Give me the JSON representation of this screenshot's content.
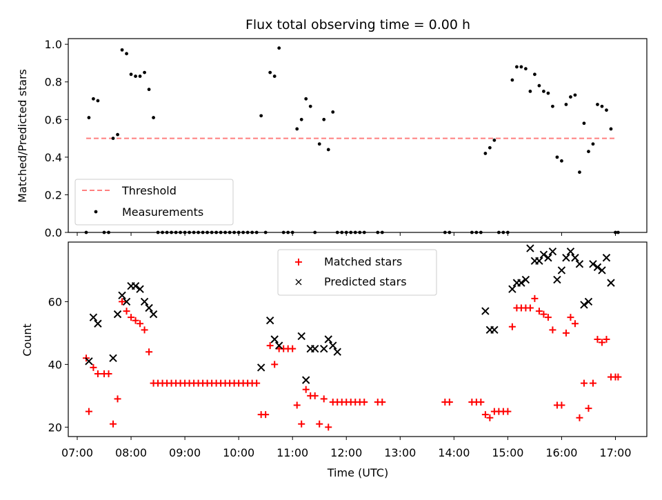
{
  "title": "Flux total observing time = 0.00 h",
  "colors": {
    "threshold": "#ff7f7f",
    "measurement": "#000000",
    "matched": "#ff0000",
    "predicted": "#000000"
  },
  "chart_data": [
    {
      "type": "scatter",
      "ylabel": "Matched/Predicted stars",
      "ylim": [
        0,
        1.03
      ],
      "yticks": [
        "0.0",
        "0.2",
        "0.4",
        "0.6",
        "0.8",
        "1.0"
      ],
      "ytick_values": [
        0,
        0.2,
        0.4,
        0.6,
        0.8,
        1.0
      ],
      "legend": {
        "position": "lower-left",
        "entries": [
          "Threshold",
          "Measurements"
        ]
      },
      "threshold": {
        "name": "Threshold",
        "value": 0.5,
        "x_range": [
          "07:10",
          "17:00"
        ]
      },
      "series": [
        {
          "name": "Measurements",
          "points": [
            [
              "07:10",
              0
            ],
            [
              "07:13",
              0.61
            ],
            [
              "07:18",
              0.71
            ],
            [
              "07:23",
              0.7
            ],
            [
              "07:30",
              0
            ],
            [
              "07:35",
              0
            ],
            [
              "07:40",
              0.5
            ],
            [
              "07:45",
              0.52
            ],
            [
              "07:50",
              0.97
            ],
            [
              "07:55",
              0.95
            ],
            [
              "08:00",
              0.84
            ],
            [
              "08:05",
              0.83
            ],
            [
              "08:10",
              0.83
            ],
            [
              "08:15",
              0.85
            ],
            [
              "08:20",
              0.76
            ],
            [
              "08:25",
              0.61
            ],
            [
              "08:30",
              0
            ],
            [
              "08:35",
              0
            ],
            [
              "08:40",
              0
            ],
            [
              "08:45",
              0
            ],
            [
              "08:50",
              0
            ],
            [
              "08:55",
              0
            ],
            [
              "09:00",
              0
            ],
            [
              "09:05",
              0
            ],
            [
              "09:10",
              0
            ],
            [
              "09:15",
              0
            ],
            [
              "09:20",
              0
            ],
            [
              "09:25",
              0
            ],
            [
              "09:30",
              0
            ],
            [
              "09:35",
              0
            ],
            [
              "09:40",
              0
            ],
            [
              "09:45",
              0
            ],
            [
              "09:50",
              0
            ],
            [
              "09:55",
              0
            ],
            [
              "10:00",
              0
            ],
            [
              "10:05",
              0
            ],
            [
              "10:10",
              0
            ],
            [
              "10:15",
              0
            ],
            [
              "10:20",
              0
            ],
            [
              "10:25",
              0.62
            ],
            [
              "10:30",
              0
            ],
            [
              "10:35",
              0.85
            ],
            [
              "10:40",
              0.83
            ],
            [
              "10:45",
              0.98
            ],
            [
              "10:50",
              0
            ],
            [
              "10:55",
              0
            ],
            [
              "11:00",
              0
            ],
            [
              "11:05",
              0.55
            ],
            [
              "11:10",
              0.6
            ],
            [
              "11:15",
              0.71
            ],
            [
              "11:20",
              0.67
            ],
            [
              "11:25",
              0
            ],
            [
              "11:30",
              0.47
            ],
            [
              "11:35",
              0.6
            ],
            [
              "11:40",
              0.44
            ],
            [
              "11:45",
              0.64
            ],
            [
              "11:50",
              0
            ],
            [
              "11:55",
              0
            ],
            [
              "12:00",
              0
            ],
            [
              "12:05",
              0
            ],
            [
              "12:10",
              0
            ],
            [
              "12:15",
              0
            ],
            [
              "12:20",
              0
            ],
            [
              "12:35",
              0
            ],
            [
              "12:40",
              0
            ],
            [
              "13:50",
              0
            ],
            [
              "13:55",
              0
            ],
            [
              "14:20",
              0
            ],
            [
              "14:25",
              0
            ],
            [
              "14:30",
              0
            ],
            [
              "14:35",
              0.42
            ],
            [
              "14:40",
              0.45
            ],
            [
              "14:45",
              0.49
            ],
            [
              "14:50",
              0
            ],
            [
              "14:55",
              0
            ],
            [
              "15:00",
              0
            ],
            [
              "15:05",
              0.81
            ],
            [
              "15:10",
              0.88
            ],
            [
              "15:15",
              0.88
            ],
            [
              "15:20",
              0.87
            ],
            [
              "15:25",
              0.75
            ],
            [
              "15:30",
              0.84
            ],
            [
              "15:35",
              0.78
            ],
            [
              "15:40",
              0.75
            ],
            [
              "15:45",
              0.74
            ],
            [
              "15:50",
              0.67
            ],
            [
              "15:55",
              0.4
            ],
            [
              "16:00",
              0.38
            ],
            [
              "16:05",
              0.68
            ],
            [
              "16:10",
              0.72
            ],
            [
              "16:15",
              0.73
            ],
            [
              "16:20",
              0.32
            ],
            [
              "16:25",
              0.58
            ],
            [
              "16:30",
              0.43
            ],
            [
              "16:35",
              0.47
            ],
            [
              "16:40",
              0.68
            ],
            [
              "16:45",
              0.67
            ],
            [
              "16:50",
              0.65
            ],
            [
              "16:55",
              0.55
            ],
            [
              "17:00",
              0
            ],
            [
              "17:03",
              0
            ]
          ]
        }
      ]
    },
    {
      "type": "scatter",
      "xlabel": "Time (UTC)",
      "ylabel": "Count",
      "ylim": [
        17,
        79
      ],
      "yticks": [
        "20",
        "40",
        "60"
      ],
      "ytick_values": [
        20,
        40,
        60
      ],
      "xlim": [
        "06:50",
        "17:35"
      ],
      "xticks": [
        "07:00",
        "08:00",
        "09:00",
        "10:00",
        "11:00",
        "12:00",
        "13:00",
        "14:00",
        "15:00",
        "16:00",
        "17:00"
      ],
      "legend": {
        "position": "top-center",
        "entries": [
          "Matched stars",
          "Predicted stars"
        ]
      },
      "series": [
        {
          "name": "Matched stars",
          "points": [
            [
              "07:10",
              42
            ],
            [
              "07:13",
              25
            ],
            [
              "07:18",
              39
            ],
            [
              "07:23",
              37
            ],
            [
              "07:30",
              37
            ],
            [
              "07:35",
              37
            ],
            [
              "07:40",
              21
            ],
            [
              "07:45",
              29
            ],
            [
              "07:50",
              60
            ],
            [
              "07:55",
              57
            ],
            [
              "08:00",
              55
            ],
            [
              "08:05",
              54
            ],
            [
              "08:10",
              53
            ],
            [
              "08:15",
              51
            ],
            [
              "08:20",
              44
            ],
            [
              "08:25",
              34
            ],
            [
              "08:30",
              34
            ],
            [
              "08:35",
              34
            ],
            [
              "08:40",
              34
            ],
            [
              "08:45",
              34
            ],
            [
              "08:50",
              34
            ],
            [
              "08:55",
              34
            ],
            [
              "09:00",
              34
            ],
            [
              "09:05",
              34
            ],
            [
              "09:10",
              34
            ],
            [
              "09:15",
              34
            ],
            [
              "09:20",
              34
            ],
            [
              "09:25",
              34
            ],
            [
              "09:30",
              34
            ],
            [
              "09:35",
              34
            ],
            [
              "09:40",
              34
            ],
            [
              "09:45",
              34
            ],
            [
              "09:50",
              34
            ],
            [
              "09:55",
              34
            ],
            [
              "10:00",
              34
            ],
            [
              "10:05",
              34
            ],
            [
              "10:10",
              34
            ],
            [
              "10:15",
              34
            ],
            [
              "10:20",
              34
            ],
            [
              "10:25",
              24
            ],
            [
              "10:30",
              24
            ],
            [
              "10:35",
              46
            ],
            [
              "10:40",
              40
            ],
            [
              "10:45",
              45
            ],
            [
              "10:50",
              45
            ],
            [
              "10:55",
              45
            ],
            [
              "11:00",
              45
            ],
            [
              "11:05",
              27
            ],
            [
              "11:10",
              21
            ],
            [
              "11:15",
              32
            ],
            [
              "11:20",
              30
            ],
            [
              "11:25",
              30
            ],
            [
              "11:30",
              21
            ],
            [
              "11:35",
              29
            ],
            [
              "11:40",
              20
            ],
            [
              "11:45",
              28
            ],
            [
              "11:50",
              28
            ],
            [
              "11:55",
              28
            ],
            [
              "12:00",
              28
            ],
            [
              "12:05",
              28
            ],
            [
              "12:10",
              28
            ],
            [
              "12:15",
              28
            ],
            [
              "12:20",
              28
            ],
            [
              "12:35",
              28
            ],
            [
              "12:40",
              28
            ],
            [
              "13:50",
              28
            ],
            [
              "13:55",
              28
            ],
            [
              "14:20",
              28
            ],
            [
              "14:25",
              28
            ],
            [
              "14:30",
              28
            ],
            [
              "14:35",
              24
            ],
            [
              "14:40",
              23
            ],
            [
              "14:45",
              25
            ],
            [
              "14:50",
              25
            ],
            [
              "14:55",
              25
            ],
            [
              "15:00",
              25
            ],
            [
              "15:05",
              52
            ],
            [
              "15:10",
              58
            ],
            [
              "15:15",
              58
            ],
            [
              "15:20",
              58
            ],
            [
              "15:25",
              58
            ],
            [
              "15:30",
              61
            ],
            [
              "15:35",
              57
            ],
            [
              "15:40",
              56
            ],
            [
              "15:45",
              55
            ],
            [
              "15:50",
              51
            ],
            [
              "15:55",
              27
            ],
            [
              "16:00",
              27
            ],
            [
              "16:05",
              50
            ],
            [
              "16:10",
              55
            ],
            [
              "16:15",
              53
            ],
            [
              "16:20",
              23
            ],
            [
              "16:25",
              34
            ],
            [
              "16:30",
              26
            ],
            [
              "16:35",
              34
            ],
            [
              "16:40",
              48
            ],
            [
              "16:45",
              47
            ],
            [
              "16:50",
              48
            ],
            [
              "16:55",
              36
            ],
            [
              "17:00",
              36
            ],
            [
              "17:03",
              36
            ]
          ]
        },
        {
          "name": "Predicted stars",
          "points": [
            [
              "07:13",
              41
            ],
            [
              "07:18",
              55
            ],
            [
              "07:23",
              53
            ],
            [
              "07:40",
              42
            ],
            [
              "07:45",
              56
            ],
            [
              "07:50",
              62
            ],
            [
              "07:55",
              60
            ],
            [
              "08:00",
              65
            ],
            [
              "08:05",
              65
            ],
            [
              "08:10",
              64
            ],
            [
              "08:15",
              60
            ],
            [
              "08:20",
              58
            ],
            [
              "08:25",
              56
            ],
            [
              "10:25",
              39
            ],
            [
              "10:35",
              54
            ],
            [
              "10:40",
              48
            ],
            [
              "10:45",
              46
            ],
            [
              "11:10",
              49
            ],
            [
              "11:15",
              35
            ],
            [
              "11:20",
              45
            ],
            [
              "11:25",
              45
            ],
            [
              "11:35",
              45
            ],
            [
              "11:40",
              48
            ],
            [
              "11:45",
              46
            ],
            [
              "11:50",
              44
            ],
            [
              "14:35",
              57
            ],
            [
              "14:40",
              51
            ],
            [
              "14:45",
              51
            ],
            [
              "15:05",
              64
            ],
            [
              "15:10",
              66
            ],
            [
              "15:15",
              66
            ],
            [
              "15:20",
              67
            ],
            [
              "15:25",
              77
            ],
            [
              "15:30",
              73
            ],
            [
              "15:35",
              73
            ],
            [
              "15:40",
              75
            ],
            [
              "15:45",
              74
            ],
            [
              "15:50",
              76
            ],
            [
              "15:55",
              67
            ],
            [
              "16:00",
              70
            ],
            [
              "16:05",
              74
            ],
            [
              "16:10",
              76
            ],
            [
              "16:15",
              74
            ],
            [
              "16:20",
              72
            ],
            [
              "16:25",
              59
            ],
            [
              "16:30",
              60
            ],
            [
              "16:35",
              72
            ],
            [
              "16:40",
              71
            ],
            [
              "16:45",
              70
            ],
            [
              "16:50",
              74
            ],
            [
              "16:55",
              66
            ]
          ]
        }
      ]
    }
  ]
}
